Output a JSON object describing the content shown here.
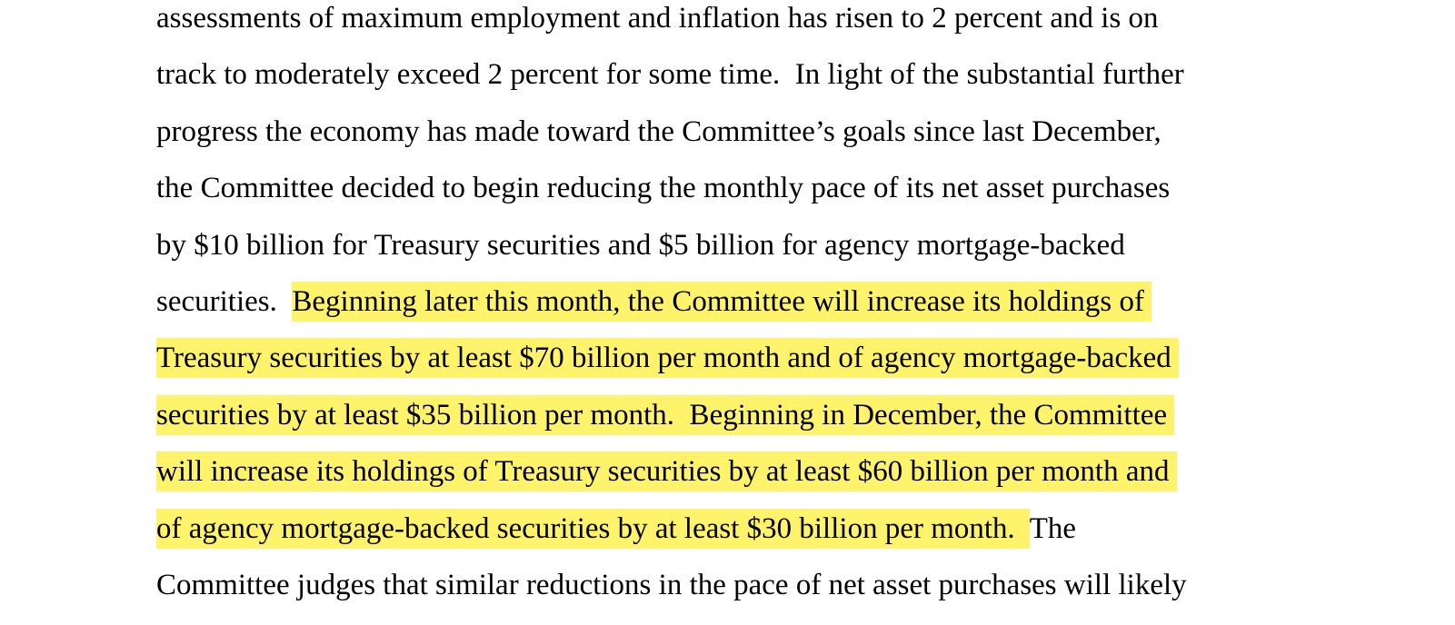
{
  "highlight_color": "#fff36b",
  "lines": [
    [
      {
        "text": "assessments of maximum employment and inflation has risen to 2 percent and is on",
        "highlight": false
      }
    ],
    [
      {
        "text": "track to moderately exceed 2 percent for some time.  In light of the substantial further",
        "highlight": false
      }
    ],
    [
      {
        "text": "progress the economy has made toward the Committee’s goals since last December,",
        "highlight": false
      }
    ],
    [
      {
        "text": "the Committee decided to begin reducing the monthly pace of its net asset purchases",
        "highlight": false
      }
    ],
    [
      {
        "text": "by $10 billion for Treasury securities and $5 billion for agency mortgage-backed",
        "highlight": false
      }
    ],
    [
      {
        "text": "securities.  ",
        "highlight": false
      },
      {
        "text": "Beginning later this month, the Committee will increase its holdings of ",
        "highlight": true
      }
    ],
    [
      {
        "text": "Treasury securities by at least $70 billion per month and of agency mortgage-backed ",
        "highlight": true
      }
    ],
    [
      {
        "text": "securities by at least $35 billion per month.  Beginning in December, the Committee ",
        "highlight": true
      }
    ],
    [
      {
        "text": "will increase its holdings of Treasury securities by at least $60 billion per month and ",
        "highlight": true
      }
    ],
    [
      {
        "text": "of agency mortgage-backed securities by at least $30 billion per month.  ",
        "highlight": true
      },
      {
        "text": "The",
        "highlight": false
      }
    ],
    [
      {
        "text": "Committee judges that similar reductions in the pace of net asset purchases will likely",
        "highlight": false
      }
    ]
  ]
}
